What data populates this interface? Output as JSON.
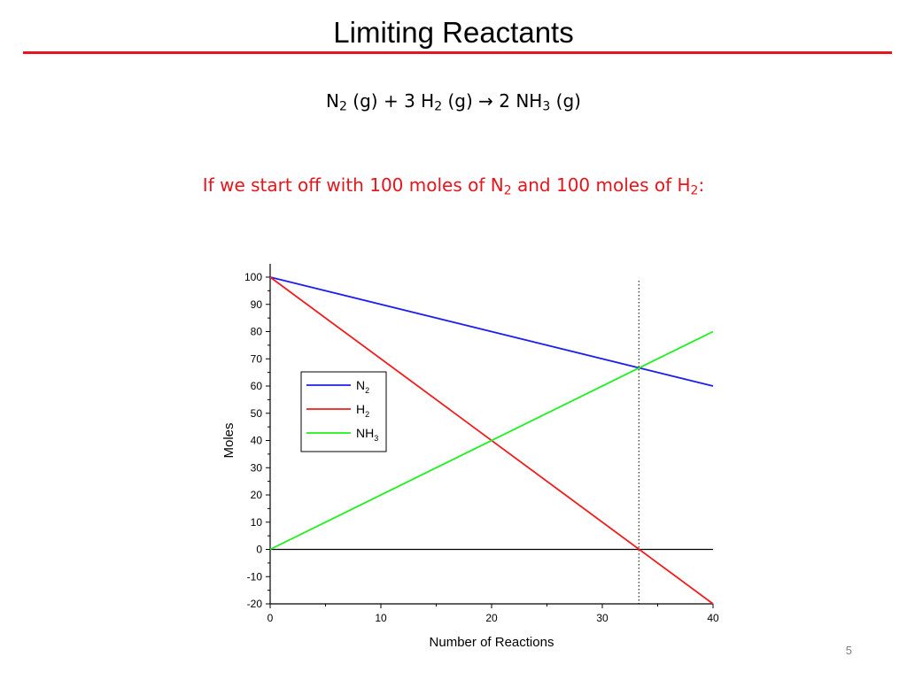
{
  "slide": {
    "title": "Limiting Reactants",
    "page_number": "5",
    "title_rule_color": "#e8141b"
  },
  "equation": {
    "n": "N",
    "n_sub": "2",
    "part1": " (g) + 3 H",
    "h_sub": "2",
    "part2": " (g) ",
    "arrow": "→",
    "part3": " 2 NH",
    "nh_sub": "3",
    "part4": " (g)"
  },
  "prompt": {
    "color": "#e8141b",
    "text1": "If we start off with 100 moles of N",
    "sub1": "2",
    "text2": " and 100 moles of H",
    "sub2": "2",
    "text3": ":"
  },
  "chart_data": {
    "type": "line",
    "xlabel": "Number of Reactions",
    "ylabel": "Moles",
    "xlim": [
      0,
      40
    ],
    "ylim": [
      -20,
      100
    ],
    "xticks": [
      "0",
      "10",
      "20",
      "30",
      "40"
    ],
    "yticks": [
      "-20",
      "-10",
      "0",
      "10",
      "20",
      "30",
      "40",
      "50",
      "60",
      "70",
      "80",
      "90",
      "100"
    ],
    "grid": false,
    "legend_position": "left",
    "zero_line": 0,
    "marker_line_x": 33.3,
    "series": [
      {
        "name": "N",
        "name_sub": "2",
        "color": "#1d1df0",
        "x": [
          0,
          40
        ],
        "values": [
          100,
          60
        ]
      },
      {
        "name": "H",
        "name_sub": "2",
        "color": "#f01d1d",
        "x": [
          0,
          40
        ],
        "values": [
          100,
          -20
        ]
      },
      {
        "name": "NH",
        "name_sub": "3",
        "color": "#1df01d",
        "x": [
          0,
          40
        ],
        "values": [
          0,
          80
        ]
      }
    ]
  }
}
